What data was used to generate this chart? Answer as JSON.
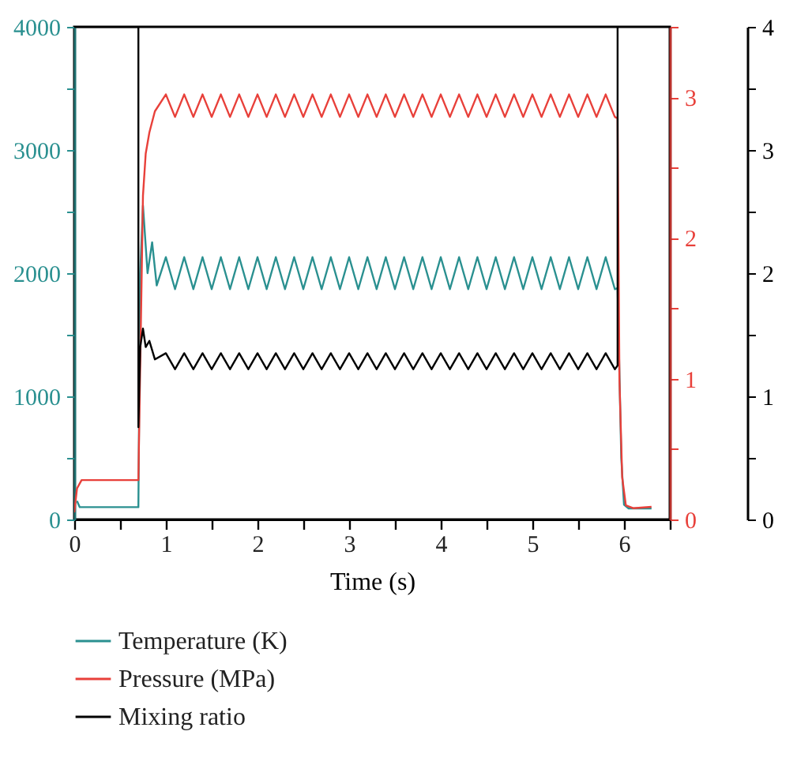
{
  "chart_data": {
    "type": "line",
    "xlabel": "Time (s)",
    "xlim": [
      0,
      6.5
    ],
    "xticks": [
      0,
      {
        "value": 0.5,
        "label": null
      },
      1,
      {
        "value": 1.5,
        "label": null
      },
      2,
      {
        "value": 2.5,
        "label": null
      },
      3,
      {
        "value": 3.5,
        "label": null
      },
      4,
      {
        "value": 4.5,
        "label": null
      },
      5,
      {
        "value": 5.5,
        "label": null
      },
      6,
      {
        "value": 6.5,
        "label": null
      }
    ],
    "ylim": [
      0,
      4000
    ],
    "yticks": [
      0,
      {
        "value": 500,
        "label": null
      },
      1000,
      {
        "value": 1500,
        "label": null
      },
      2000,
      {
        "value": 2500,
        "label": null
      },
      3000,
      {
        "value": 3500,
        "label": null
      },
      4000
    ],
    "y2lim": [
      0,
      3.5
    ],
    "y2ticks": [
      0,
      {
        "value": 0.5,
        "label": null
      },
      1,
      {
        "value": 1.5,
        "label": null
      },
      2,
      {
        "value": 2.5,
        "label": null
      },
      3,
      {
        "value": 3.5,
        "label": null
      }
    ],
    "y3lim": [
      0,
      4
    ],
    "y3ticks": [
      0,
      {
        "value": 0.5,
        "label": null
      },
      1,
      {
        "value": 1.5,
        "label": null
      },
      2,
      {
        "value": 2.5,
        "label": null
      },
      3,
      {
        "value": 3.5,
        "label": null
      },
      4
    ],
    "legend": "bottom",
    "grid": false,
    "line_style": "solid",
    "marker": "none",
    "series": [
      {
        "name": "Temperature (K)",
        "color": "#2a9090",
        "axis": "y",
        "x": [
          0.03,
          0.06,
          0.7,
          0.72,
          0.75,
          0.8,
          0.85,
          0.9,
          1.0,
          1.1,
          1.2,
          1.3,
          1.4,
          1.5,
          1.6,
          1.7,
          1.8,
          1.9,
          2.0,
          2.1,
          2.2,
          2.3,
          2.4,
          2.5,
          2.6,
          2.7,
          2.8,
          2.9,
          3.0,
          3.1,
          3.2,
          3.3,
          3.4,
          3.5,
          3.6,
          3.7,
          3.8,
          3.9,
          4.0,
          4.1,
          4.2,
          4.3,
          4.4,
          4.5,
          4.6,
          4.7,
          4.8,
          4.9,
          5.0,
          5.1,
          5.2,
          5.3,
          5.4,
          5.5,
          5.6,
          5.7,
          5.8,
          5.9,
          5.93,
          5.97,
          6.0,
          6.05,
          6.3
        ],
        "values": [
          150,
          100,
          100,
          2000,
          2550,
          2000,
          2250,
          1900,
          2130,
          1870,
          2130,
          1870,
          2130,
          1870,
          2130,
          1870,
          2130,
          1870,
          2130,
          1870,
          2130,
          1870,
          2130,
          1870,
          2130,
          1870,
          2130,
          1870,
          2130,
          1870,
          2130,
          1870,
          2130,
          1870,
          2130,
          1870,
          2130,
          1870,
          2130,
          1870,
          2130,
          1870,
          2130,
          1870,
          2130,
          1870,
          2130,
          1870,
          2130,
          1870,
          2130,
          1870,
          2130,
          1870,
          2130,
          1870,
          2130,
          1870,
          1880,
          500,
          120,
          90,
          90
        ]
      },
      {
        "name": "Pressure (MPa)",
        "color": "#e8403a",
        "axis": "y2",
        "x": [
          0,
          0.03,
          0.08,
          0.7,
          0.71,
          0.75,
          0.78,
          0.82,
          0.88,
          1.0,
          1.1,
          1.2,
          1.3,
          1.4,
          1.5,
          1.6,
          1.7,
          1.8,
          1.9,
          2.0,
          2.1,
          2.2,
          2.3,
          2.4,
          2.5,
          2.6,
          2.7,
          2.8,
          2.9,
          3.0,
          3.1,
          3.2,
          3.3,
          3.4,
          3.5,
          3.6,
          3.7,
          3.8,
          3.9,
          4.0,
          4.1,
          4.2,
          4.3,
          4.4,
          4.5,
          4.6,
          4.7,
          4.8,
          4.9,
          5.0,
          5.1,
          5.2,
          5.3,
          5.4,
          5.5,
          5.6,
          5.7,
          5.8,
          5.9,
          5.93,
          5.95,
          5.98,
          6.02,
          6.1,
          6.3
        ],
        "values": [
          0.05,
          0.22,
          0.28,
          0.28,
          0.7,
          2.3,
          2.6,
          2.75,
          2.9,
          3.02,
          2.86,
          3.02,
          2.86,
          3.02,
          2.86,
          3.02,
          2.86,
          3.02,
          2.86,
          3.02,
          2.86,
          3.02,
          2.86,
          3.02,
          2.86,
          3.02,
          2.86,
          3.02,
          2.86,
          3.02,
          2.86,
          3.02,
          2.86,
          3.02,
          2.86,
          3.02,
          2.86,
          3.02,
          2.86,
          3.02,
          2.86,
          3.02,
          2.86,
          3.02,
          2.86,
          3.02,
          2.86,
          3.02,
          2.86,
          3.02,
          2.86,
          3.02,
          2.86,
          3.02,
          2.86,
          3.02,
          2.86,
          3.02,
          2.86,
          2.85,
          1.0,
          0.3,
          0.1,
          0.08,
          0.09
        ]
      },
      {
        "name": "Mixing ratio",
        "color": "#000000",
        "axis": "y3",
        "x": [
          0,
          0.7,
          0.7,
          0.72,
          0.75,
          0.78,
          0.82,
          0.88,
          1.0,
          1.1,
          1.2,
          1.3,
          1.4,
          1.5,
          1.6,
          1.7,
          1.8,
          1.9,
          2.0,
          2.1,
          2.2,
          2.3,
          2.4,
          2.5,
          2.6,
          2.7,
          2.8,
          2.9,
          3.0,
          3.1,
          3.2,
          3.3,
          3.4,
          3.5,
          3.6,
          3.7,
          3.8,
          3.9,
          4.0,
          4.1,
          4.2,
          4.3,
          4.4,
          4.5,
          4.6,
          4.7,
          4.8,
          4.9,
          5.0,
          5.1,
          5.2,
          5.3,
          5.4,
          5.5,
          5.6,
          5.7,
          5.8,
          5.9,
          5.93,
          5.93
        ],
        "values": [
          4,
          4,
          0.75,
          1.4,
          1.55,
          1.4,
          1.45,
          1.3,
          1.35,
          1.22,
          1.35,
          1.22,
          1.35,
          1.22,
          1.35,
          1.22,
          1.35,
          1.22,
          1.35,
          1.22,
          1.35,
          1.22,
          1.35,
          1.22,
          1.35,
          1.22,
          1.35,
          1.22,
          1.35,
          1.22,
          1.35,
          1.22,
          1.35,
          1.22,
          1.35,
          1.22,
          1.35,
          1.22,
          1.35,
          1.22,
          1.35,
          1.22,
          1.35,
          1.22,
          1.35,
          1.22,
          1.35,
          1.22,
          1.35,
          1.22,
          1.35,
          1.22,
          1.35,
          1.22,
          1.35,
          1.22,
          1.35,
          1.22,
          1.25,
          4
        ]
      }
    ]
  }
}
